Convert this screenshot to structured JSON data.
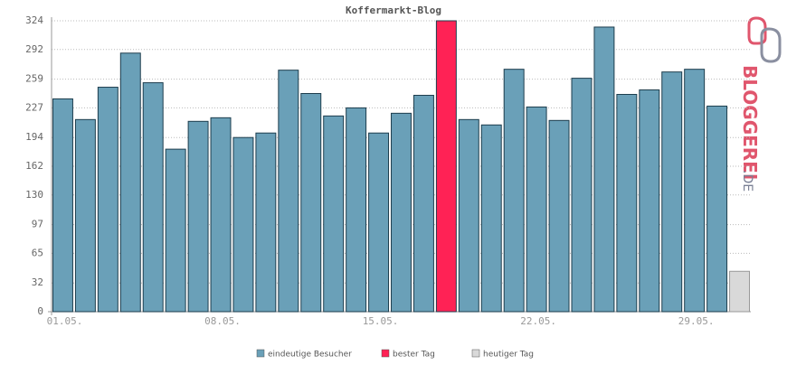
{
  "chart_data": {
    "type": "bar",
    "title": "Koffermarkt-Blog",
    "categories": [
      "01.05.",
      null,
      null,
      null,
      null,
      null,
      null,
      "08.05.",
      null,
      null,
      null,
      null,
      null,
      null,
      "15.05.",
      null,
      null,
      null,
      null,
      null,
      null,
      "22.05.",
      null,
      null,
      null,
      null,
      null,
      null,
      "29.05.",
      null,
      null
    ],
    "series": [
      {
        "name": "eindeutige Besucher",
        "color": "#6aa0b8",
        "values": [
          237,
          214,
          250,
          288,
          255,
          181,
          212,
          216,
          194,
          199,
          269,
          243,
          218,
          227,
          199,
          221,
          241,
          null,
          214,
          208,
          270,
          228,
          213,
          260,
          317,
          242,
          247,
          267,
          270,
          229,
          null
        ]
      },
      {
        "name": "bester Tag",
        "color": "#ff2255",
        "values": [
          null,
          null,
          null,
          null,
          null,
          null,
          null,
          null,
          null,
          null,
          null,
          null,
          null,
          null,
          null,
          null,
          null,
          324,
          null,
          null,
          null,
          null,
          null,
          null,
          null,
          null,
          null,
          null,
          null,
          null,
          null
        ]
      },
      {
        "name": "heutiger Tag",
        "color": "#d9d9d9",
        "values": [
          null,
          null,
          null,
          null,
          null,
          null,
          null,
          null,
          null,
          null,
          null,
          null,
          null,
          null,
          null,
          null,
          null,
          null,
          null,
          null,
          null,
          null,
          null,
          null,
          null,
          null,
          null,
          null,
          null,
          null,
          45
        ]
      }
    ],
    "ylim": [
      0,
      324
    ],
    "yticks": [
      0,
      32,
      65,
      97,
      130,
      162,
      194,
      227,
      259,
      292,
      324
    ],
    "grid": true,
    "logo": {
      "text": "BLOGGEREI",
      "suffix": ".DE"
    }
  }
}
